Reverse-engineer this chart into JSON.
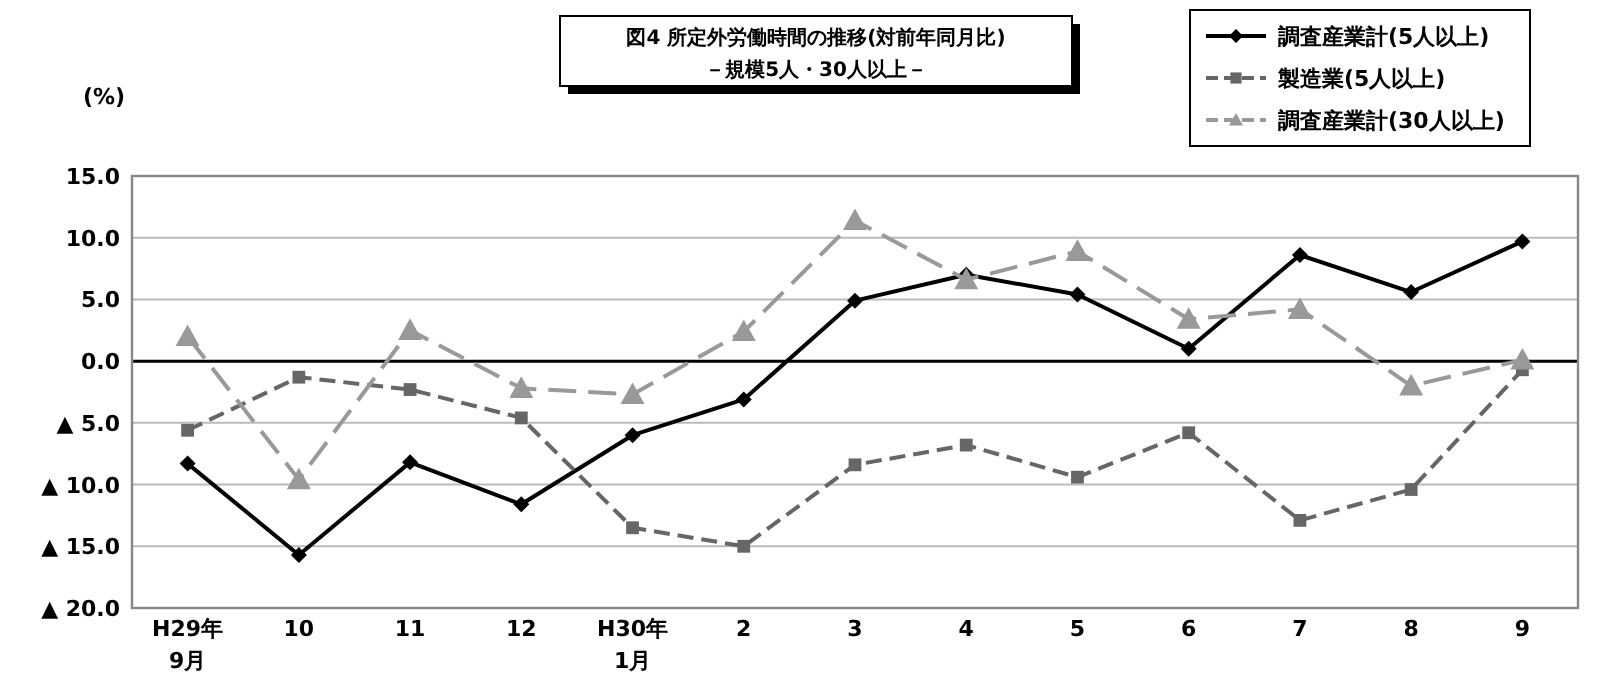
{
  "chart_data": {
    "type": "line",
    "title": "図4  所定外労働時間の推移(対前年同月比)",
    "subtitle": "－規模5人・30人以上－",
    "ylabel": "(%)",
    "categories": [
      "H29年\n9月",
      "10",
      "11",
      "12",
      "H30年\n1月",
      "2",
      "3",
      "4",
      "5",
      "6",
      "7",
      "8",
      "9"
    ],
    "series": [
      {
        "name": "調査産業計(5人以上)",
        "color": "#000000",
        "marker": "diamond",
        "line_style": "solid",
        "values": [
          -8.3,
          -15.7,
          -8.2,
          -11.6,
          -6.0,
          -3.1,
          4.9,
          7.0,
          5.4,
          1.0,
          8.6,
          5.6,
          9.7
        ]
      },
      {
        "name": "製造業(5人以上)",
        "color": "#666666",
        "marker": "square",
        "line_style": "dashed",
        "values": [
          -5.6,
          -1.3,
          -2.3,
          -4.6,
          -13.5,
          -15.0,
          -8.4,
          -6.8,
          -9.4,
          -5.8,
          -12.9,
          -10.4,
          -0.7
        ]
      },
      {
        "name": "調査産業計(30人以上)",
        "color": "#999999",
        "marker": "triangle",
        "line_style": "dashed",
        "values": [
          2.0,
          -9.6,
          2.5,
          -2.2,
          -2.7,
          2.4,
          11.4,
          6.6,
          8.9,
          3.4,
          4.2,
          -2.0,
          0.1
        ]
      }
    ],
    "ylim": [
      -20,
      15
    ],
    "yticks": [
      {
        "value": 15,
        "label": "15.0"
      },
      {
        "value": 10,
        "label": "10.0"
      },
      {
        "value": 5,
        "label": "5.0"
      },
      {
        "value": 0,
        "label": "0.0"
      },
      {
        "value": -5,
        "label": "▲ 5.0"
      },
      {
        "value": -10,
        "label": "▲ 10.0"
      },
      {
        "value": -15,
        "label": "▲ 15.0"
      },
      {
        "value": -20,
        "label": "▲ 20.0"
      }
    ],
    "grid": "y",
    "legend": "top right",
    "ref_lines": [
      {
        "axis": "y",
        "value": 0,
        "color": "#000000"
      }
    ]
  }
}
